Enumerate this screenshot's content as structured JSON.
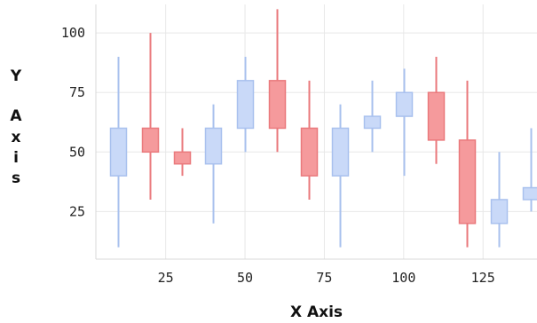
{
  "chart_data": {
    "type": "candlestick",
    "xlabel": "X Axis",
    "ylabel": "Y Axis",
    "ylabel_lines": [
      "Y",
      "A",
      "x",
      "i",
      "s"
    ],
    "xlim": [
      3,
      142
    ],
    "ylim": [
      5,
      112
    ],
    "x_ticks": [
      25,
      50,
      75,
      100,
      125
    ],
    "y_ticks": [
      25,
      50,
      75,
      100
    ],
    "grid": true,
    "colors": {
      "up_fill": "#c9d9f8",
      "up_stroke": "#a9c1ee",
      "down_fill": "#f59a9c",
      "down_stroke": "#ea7a7d",
      "grid": "#e8e8e8",
      "axis": "#d8d8d8"
    },
    "points": [
      {
        "x": 10,
        "open": 40,
        "close": 60,
        "low": 10,
        "high": 90
      },
      {
        "x": 20,
        "open": 60,
        "close": 50,
        "low": 30,
        "high": 100
      },
      {
        "x": 30,
        "open": 50,
        "close": 45,
        "low": 40,
        "high": 60
      },
      {
        "x": 40,
        "open": 45,
        "close": 60,
        "low": 20,
        "high": 70
      },
      {
        "x": 50,
        "open": 60,
        "close": 80,
        "low": 50,
        "high": 90
      },
      {
        "x": 60,
        "open": 80,
        "close": 60,
        "low": 50,
        "high": 110
      },
      {
        "x": 70,
        "open": 60,
        "close": 40,
        "low": 30,
        "high": 80
      },
      {
        "x": 80,
        "open": 40,
        "close": 60,
        "low": 10,
        "high": 70
      },
      {
        "x": 90,
        "open": 60,
        "close": 65,
        "low": 50,
        "high": 80
      },
      {
        "x": 100,
        "open": 65,
        "close": 75,
        "low": 40,
        "high": 85
      },
      {
        "x": 110,
        "open": 75,
        "close": 55,
        "low": 45,
        "high": 90
      },
      {
        "x": 120,
        "open": 55,
        "close": 20,
        "low": 10,
        "high": 80
      },
      {
        "x": 130,
        "open": 20,
        "close": 30,
        "low": 10,
        "high": 50
      },
      {
        "x": 140,
        "open": 30,
        "close": 35,
        "low": 25,
        "high": 60
      }
    ]
  }
}
